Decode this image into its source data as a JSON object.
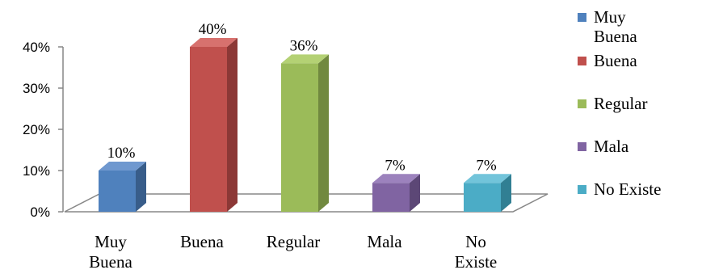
{
  "chart_data": {
    "type": "bar",
    "style": "3d-column",
    "categories": [
      [
        "Muy",
        "Buena"
      ],
      [
        "Buena"
      ],
      [
        "Regular"
      ],
      [
        "Mala"
      ],
      [
        "No",
        "Existe"
      ]
    ],
    "values": [
      10,
      40,
      36,
      7,
      7
    ],
    "data_labels": [
      "10%",
      "40%",
      "36%",
      "7%",
      "7%"
    ],
    "y_ticks": [
      "0%",
      "10%",
      "20%",
      "30%",
      "40%"
    ],
    "ylim": [
      0,
      40
    ],
    "grid": false,
    "legend": {
      "position": "right",
      "entries": [
        [
          "Muy",
          "Buena"
        ],
        [
          "Buena"
        ],
        [
          "Regular"
        ],
        [
          "Mala"
        ],
        [
          "No Existe"
        ]
      ]
    },
    "colors": [
      {
        "front": "#4f81bd",
        "side": "#385d8a",
        "top": "#6f98cf"
      },
      {
        "front": "#c0504d",
        "side": "#8c3836",
        "top": "#d7716e"
      },
      {
        "front": "#9bbb59",
        "side": "#71893f",
        "top": "#b4d174"
      },
      {
        "front": "#8064a2",
        "side": "#5c4776",
        "top": "#9c82bd"
      },
      {
        "front": "#4bacc6",
        "side": "#317f93",
        "top": "#72c4da"
      }
    ]
  }
}
